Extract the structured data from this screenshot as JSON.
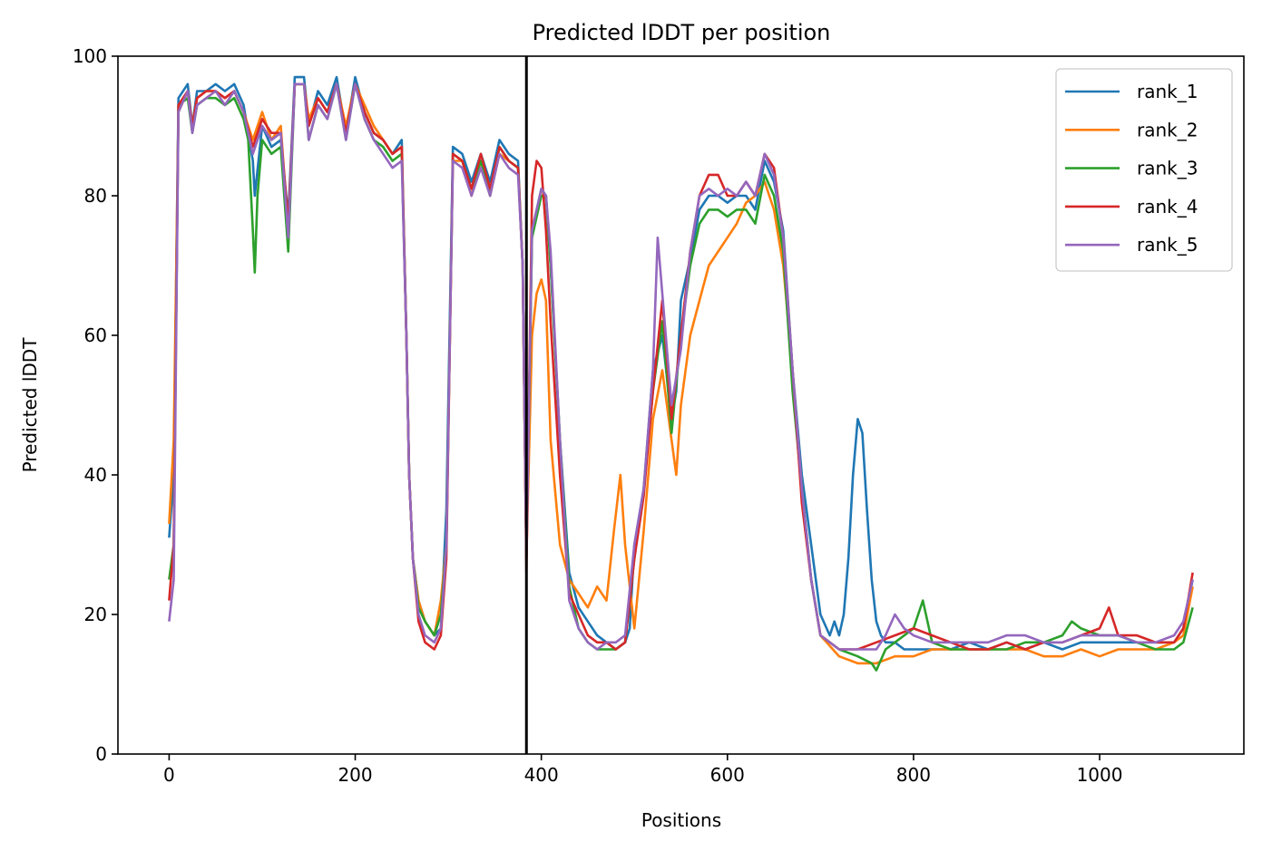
{
  "chart_data": {
    "type": "line",
    "title": "Predicted lDDT per position",
    "xlabel": "Positions",
    "ylabel": "Predicted lDDT",
    "xlim": [
      -55,
      1155
    ],
    "ylim": [
      0,
      100
    ],
    "x_ticks": [
      0,
      200,
      400,
      600,
      800,
      1000
    ],
    "y_ticks": [
      0,
      20,
      40,
      60,
      80,
      100
    ],
    "legend_position": "top-right",
    "grid": false,
    "chain_boundary_x": 384,
    "colors": {
      "rank_1": "#1f77b4",
      "rank_2": "#ff7f0e",
      "rank_3": "#2ca02c",
      "rank_4": "#d62728",
      "rank_5": "#9467bd",
      "boundary": "#000000"
    },
    "series": [
      {
        "name": "rank_1",
        "x": [
          0,
          5,
          10,
          20,
          25,
          30,
          40,
          50,
          60,
          70,
          80,
          90,
          92,
          100,
          110,
          120,
          128,
          135,
          145,
          150,
          160,
          170,
          180,
          190,
          200,
          210,
          220,
          230,
          240,
          250,
          255,
          258,
          262,
          268,
          275,
          285,
          292,
          298,
          305,
          315,
          325,
          335,
          345,
          355,
          365,
          375,
          380,
          384,
          390,
          400,
          405,
          410,
          420,
          430,
          440,
          450,
          460,
          470,
          480,
          490,
          495,
          500,
          510,
          520,
          530,
          540,
          545,
          550,
          560,
          570,
          580,
          590,
          600,
          610,
          620,
          630,
          640,
          650,
          660,
          670,
          680,
          690,
          700,
          710,
          715,
          720,
          725,
          730,
          735,
          740,
          745,
          750,
          755,
          760,
          765,
          770,
          780,
          790,
          800,
          820,
          840,
          860,
          880,
          900,
          920,
          940,
          960,
          980,
          1000,
          1020,
          1040,
          1060,
          1080,
          1090,
          1100
        ],
        "y": [
          31,
          40,
          94,
          96,
          90,
          95,
          95,
          96,
          95,
          96,
          93,
          85,
          80,
          90,
          87,
          88,
          77,
          97,
          97,
          90,
          95,
          93,
          97,
          89,
          97,
          92,
          89,
          88,
          86,
          88,
          60,
          40,
          28,
          22,
          19,
          17,
          18,
          35,
          87,
          86,
          82,
          86,
          82,
          88,
          86,
          85,
          70,
          28,
          75,
          81,
          80,
          70,
          45,
          26,
          21,
          19,
          17,
          16,
          15,
          16,
          18,
          30,
          38,
          55,
          60,
          48,
          52,
          65,
          71,
          78,
          80,
          80,
          79,
          80,
          80,
          78,
          85,
          82,
          75,
          55,
          40,
          30,
          20,
          17,
          19,
          17,
          20,
          28,
          40,
          48,
          46,
          35,
          25,
          19,
          17,
          16,
          16,
          15,
          15,
          15,
          15,
          16,
          15,
          16,
          15,
          16,
          15,
          16,
          16,
          16,
          16,
          16,
          16,
          18,
          25
        ]
      },
      {
        "name": "rank_2",
        "x": [
          0,
          5,
          10,
          20,
          25,
          30,
          40,
          50,
          60,
          70,
          80,
          90,
          100,
          110,
          120,
          128,
          135,
          145,
          150,
          160,
          170,
          180,
          190,
          200,
          210,
          220,
          230,
          240,
          250,
          255,
          258,
          262,
          268,
          275,
          285,
          292,
          298,
          305,
          315,
          325,
          335,
          345,
          355,
          365,
          375,
          380,
          384,
          390,
          395,
          400,
          405,
          410,
          420,
          430,
          440,
          450,
          460,
          470,
          478,
          485,
          490,
          500,
          510,
          520,
          530,
          540,
          545,
          550,
          560,
          570,
          580,
          590,
          600,
          610,
          620,
          630,
          640,
          650,
          660,
          670,
          680,
          690,
          700,
          720,
          740,
          760,
          780,
          800,
          820,
          840,
          860,
          880,
          900,
          920,
          940,
          960,
          980,
          1000,
          1020,
          1040,
          1060,
          1080,
          1090,
          1100
        ],
        "y": [
          33,
          45,
          92,
          95,
          90,
          94,
          95,
          95,
          94,
          95,
          92,
          88,
          92,
          88,
          90,
          75,
          96,
          96,
          91,
          94,
          92,
          96,
          90,
          96,
          93,
          90,
          88,
          86,
          87,
          60,
          40,
          28,
          22,
          19,
          17,
          22,
          30,
          85,
          85,
          80,
          85,
          80,
          86,
          85,
          84,
          70,
          28,
          60,
          66,
          68,
          65,
          45,
          30,
          25,
          23,
          21,
          24,
          22,
          32,
          40,
          30,
          18,
          32,
          48,
          55,
          45,
          40,
          50,
          60,
          65,
          70,
          72,
          74,
          76,
          79,
          80,
          82,
          78,
          70,
          55,
          38,
          25,
          17,
          14,
          13,
          13,
          14,
          14,
          15,
          15,
          15,
          15,
          15,
          15,
          14,
          14,
          15,
          14,
          15,
          15,
          15,
          16,
          17,
          24
        ]
      },
      {
        "name": "rank_3",
        "x": [
          0,
          5,
          10,
          20,
          25,
          30,
          40,
          50,
          60,
          70,
          80,
          85,
          90,
          92,
          95,
          100,
          110,
          120,
          128,
          135,
          145,
          150,
          160,
          170,
          180,
          190,
          200,
          210,
          220,
          230,
          240,
          250,
          255,
          258,
          262,
          268,
          275,
          285,
          292,
          298,
          305,
          315,
          325,
          335,
          345,
          355,
          365,
          375,
          380,
          384,
          390,
          400,
          405,
          410,
          420,
          430,
          440,
          450,
          460,
          470,
          480,
          490,
          500,
          510,
          520,
          530,
          540,
          550,
          560,
          570,
          580,
          590,
          600,
          610,
          620,
          630,
          640,
          650,
          660,
          670,
          680,
          690,
          700,
          720,
          740,
          755,
          760,
          770,
          780,
          800,
          810,
          820,
          840,
          860,
          880,
          900,
          920,
          940,
          960,
          970,
          980,
          1000,
          1020,
          1040,
          1060,
          1080,
          1090,
          1100
        ],
        "y": [
          25,
          30,
          93,
          94,
          89,
          93,
          94,
          94,
          93,
          94,
          91,
          88,
          75,
          69,
          80,
          88,
          86,
          87,
          72,
          96,
          96,
          88,
          93,
          91,
          96,
          88,
          96,
          91,
          88,
          87,
          85,
          86,
          60,
          40,
          28,
          21,
          19,
          17,
          20,
          30,
          86,
          85,
          81,
          85,
          80,
          87,
          85,
          84,
          70,
          28,
          74,
          80,
          80,
          70,
          45,
          24,
          18,
          16,
          15,
          15,
          15,
          16,
          28,
          38,
          52,
          62,
          46,
          60,
          70,
          76,
          78,
          78,
          77,
          78,
          78,
          76,
          83,
          80,
          72,
          52,
          38,
          25,
          17,
          15,
          14,
          13,
          12,
          15,
          16,
          18,
          22,
          16,
          15,
          15,
          15,
          15,
          16,
          16,
          17,
          19,
          18,
          17,
          17,
          16,
          15,
          15,
          16,
          21
        ]
      },
      {
        "name": "rank_4",
        "x": [
          0,
          5,
          10,
          20,
          25,
          30,
          40,
          50,
          60,
          70,
          80,
          90,
          100,
          110,
          120,
          128,
          135,
          145,
          150,
          160,
          170,
          180,
          190,
          200,
          210,
          220,
          230,
          240,
          250,
          255,
          258,
          262,
          268,
          275,
          285,
          292,
          298,
          305,
          315,
          325,
          335,
          345,
          355,
          365,
          375,
          380,
          384,
          390,
          395,
          400,
          405,
          410,
          420,
          430,
          440,
          450,
          460,
          470,
          480,
          490,
          500,
          510,
          520,
          530,
          540,
          550,
          560,
          570,
          580,
          590,
          600,
          610,
          620,
          630,
          640,
          650,
          660,
          670,
          680,
          690,
          700,
          720,
          740,
          760,
          780,
          800,
          820,
          840,
          860,
          880,
          900,
          920,
          940,
          960,
          980,
          1000,
          1010,
          1020,
          1040,
          1060,
          1080,
          1090,
          1100
        ],
        "y": [
          22,
          30,
          93,
          95,
          90,
          94,
          95,
          95,
          94,
          95,
          92,
          87,
          91,
          89,
          89,
          76,
          96,
          96,
          90,
          94,
          92,
          96,
          89,
          96,
          92,
          89,
          88,
          86,
          87,
          60,
          40,
          28,
          19,
          16,
          15,
          17,
          28,
          86,
          85,
          81,
          86,
          81,
          87,
          85,
          84,
          70,
          26,
          80,
          85,
          84,
          75,
          62,
          40,
          23,
          20,
          17,
          16,
          16,
          15,
          16,
          28,
          37,
          52,
          65,
          48,
          60,
          72,
          80,
          83,
          83,
          80,
          80,
          82,
          80,
          86,
          84,
          74,
          55,
          36,
          25,
          17,
          15,
          15,
          16,
          17,
          18,
          17,
          16,
          15,
          15,
          16,
          15,
          16,
          16,
          17,
          18,
          21,
          17,
          17,
          16,
          16,
          18,
          26
        ]
      },
      {
        "name": "rank_5",
        "x": [
          0,
          5,
          10,
          20,
          25,
          30,
          40,
          50,
          60,
          70,
          80,
          90,
          100,
          110,
          120,
          128,
          135,
          145,
          150,
          160,
          170,
          180,
          190,
          200,
          210,
          220,
          230,
          240,
          250,
          255,
          258,
          262,
          268,
          275,
          285,
          292,
          298,
          305,
          315,
          325,
          335,
          345,
          355,
          365,
          375,
          380,
          384,
          390,
          400,
          405,
          410,
          420,
          430,
          440,
          450,
          460,
          470,
          480,
          490,
          500,
          510,
          520,
          525,
          530,
          540,
          550,
          560,
          570,
          580,
          590,
          600,
          610,
          620,
          630,
          640,
          650,
          660,
          670,
          680,
          690,
          700,
          720,
          740,
          760,
          770,
          780,
          790,
          800,
          820,
          840,
          860,
          880,
          900,
          920,
          940,
          960,
          980,
          1000,
          1020,
          1040,
          1060,
          1080,
          1090,
          1100
        ],
        "y": [
          19,
          25,
          92,
          95,
          89,
          93,
          94,
          95,
          93,
          95,
          92,
          86,
          90,
          88,
          89,
          74,
          96,
          96,
          88,
          93,
          91,
          96,
          88,
          96,
          91,
          88,
          86,
          84,
          85,
          60,
          40,
          28,
          20,
          17,
          16,
          18,
          30,
          85,
          84,
          80,
          84,
          80,
          86,
          84,
          83,
          70,
          28,
          75,
          81,
          80,
          72,
          45,
          22,
          18,
          16,
          15,
          16,
          16,
          17,
          30,
          38,
          55,
          74,
          66,
          50,
          58,
          72,
          80,
          81,
          80,
          81,
          80,
          82,
          80,
          86,
          83,
          74,
          55,
          38,
          25,
          17,
          15,
          15,
          15,
          17,
          20,
          18,
          17,
          16,
          16,
          16,
          16,
          17,
          17,
          16,
          16,
          17,
          17,
          17,
          16,
          16,
          17,
          19,
          25
        ]
      }
    ]
  }
}
